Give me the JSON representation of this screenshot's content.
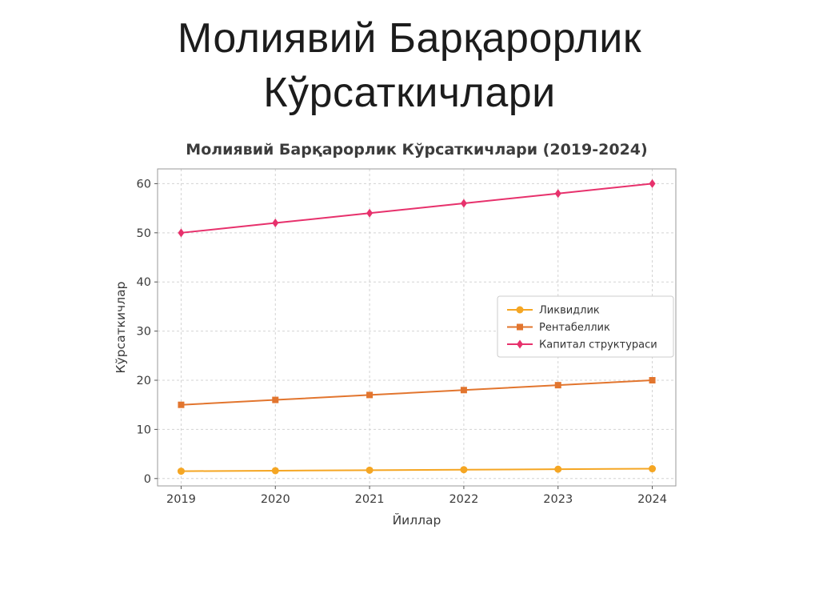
{
  "page": {
    "title_line1": "Молиявий Барқарорлик",
    "title_line2": "Кўрсаткичлари"
  },
  "chart_data": {
    "type": "line",
    "title": "Молиявий Барқарорлик Кўрсаткичлари (2019-2024)",
    "xlabel": "Йиллар",
    "ylabel": "Кўрсаткичлар",
    "x": [
      2019,
      2020,
      2021,
      2022,
      2023,
      2024
    ],
    "series": [
      {
        "name": "Ликвидлик",
        "color": "#f5a623",
        "marker": "circle",
        "values": [
          1.5,
          1.6,
          1.7,
          1.8,
          1.9,
          2.0
        ]
      },
      {
        "name": "Рентабеллик",
        "color": "#e2752e",
        "marker": "square",
        "values": [
          15,
          16,
          17,
          18,
          19,
          20
        ]
      },
      {
        "name": "Капитал структураси",
        "color": "#e7316c",
        "marker": "diamond",
        "values": [
          50,
          52,
          54,
          56,
          58,
          60
        ]
      }
    ],
    "yticks": [
      0,
      10,
      20,
      30,
      40,
      50,
      60
    ],
    "ylim": [
      -1.5,
      63
    ],
    "xlim": [
      2018.75,
      2024.25
    ],
    "grid": true,
    "grid_style": "dashed",
    "legend_position": "center-right"
  }
}
